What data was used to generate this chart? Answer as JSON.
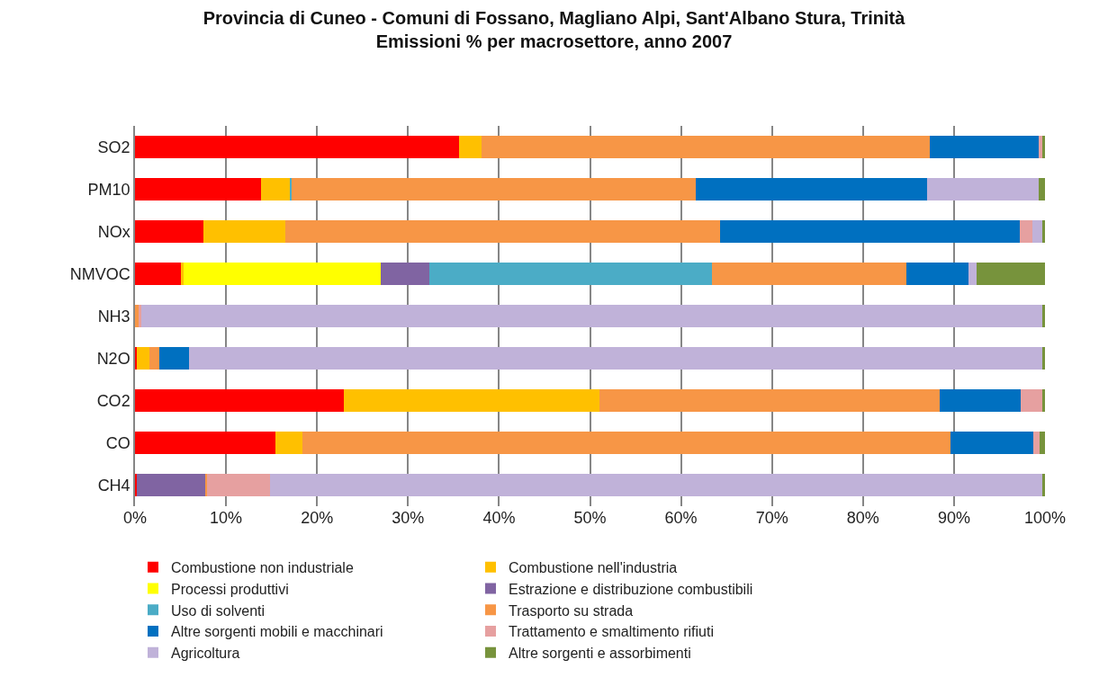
{
  "chart_data": {
    "type": "bar",
    "title": "Provincia di Cuneo - Comuni di Fossano, Magliano Alpi, Sant'Albano Stura, Trinità\nEmissioni % per macrosettore, anno 2007",
    "orientation": "horizontal",
    "stacked": true,
    "categories": [
      "SO2",
      "PM10",
      "NOx",
      "NMVOC",
      "NH3",
      "N2O",
      "CO2",
      "CO",
      "CH4"
    ],
    "series": [
      {
        "name": "Combustione non industriale",
        "color": "#ff0000",
        "values": [
          35.6,
          13.8,
          7.5,
          5.0,
          0,
          0.2,
          22.9,
          15.4,
          0.2
        ]
      },
      {
        "name": "Combustione nell'industria",
        "color": "#ffc000",
        "values": [
          2.5,
          3.2,
          9.0,
          0.3,
          0,
          1.4,
          28.1,
          3.0,
          0
        ]
      },
      {
        "name": "Processi produttivi",
        "color": "#ffff00",
        "values": [
          0,
          0,
          0,
          21.7,
          0,
          0,
          0,
          0,
          0
        ]
      },
      {
        "name": "Estrazione e distribuzione combustibili",
        "color": "#8064a2",
        "values": [
          0,
          0,
          0,
          5.3,
          0,
          0,
          0,
          0,
          7.5
        ]
      },
      {
        "name": "Uso di solventi",
        "color": "#4bacc6",
        "values": [
          0,
          0.2,
          0,
          31.1,
          0,
          0,
          0,
          0,
          0
        ]
      },
      {
        "name": "Trasporto su strada",
        "color": "#f79646",
        "values": [
          49.2,
          44.4,
          47.8,
          21.4,
          0.4,
          1.1,
          37.4,
          71.2,
          0.2
        ]
      },
      {
        "name": "Altre sorgenti mobili e macchinari",
        "color": "#0070c0",
        "values": [
          12.0,
          25.4,
          32.9,
          6.8,
          0,
          3.2,
          8.9,
          9.1,
          0
        ]
      },
      {
        "name": "Trattamento e smaltimento rifiuti",
        "color": "#e6a0a0",
        "values": [
          0.4,
          0,
          1.4,
          0,
          0.3,
          0,
          2.4,
          0.7,
          6.9
        ]
      },
      {
        "name": "Agricoltura",
        "color": "#c0b2d9",
        "values": [
          0,
          12.3,
          1.1,
          0.9,
          99.0,
          93.8,
          0,
          0,
          84.9
        ]
      },
      {
        "name": "Altre sorgenti e assorbimenti",
        "color": "#77933c",
        "values": [
          0.3,
          0.7,
          0.3,
          7.5,
          0.3,
          0.3,
          0.3,
          0.6,
          0.3
        ]
      }
    ],
    "xlim": [
      0,
      100
    ],
    "xticks": [
      {
        "value": 0,
        "label": "0%"
      },
      {
        "value": 10,
        "label": "10%"
      },
      {
        "value": 20,
        "label": "20%"
      },
      {
        "value": 30,
        "label": "30%"
      },
      {
        "value": 40,
        "label": "40%"
      },
      {
        "value": 50,
        "label": "50%"
      },
      {
        "value": 60,
        "label": "60%"
      },
      {
        "value": 70,
        "label": "70%"
      },
      {
        "value": 80,
        "label": "80%"
      },
      {
        "value": 90,
        "label": "90%"
      },
      {
        "value": 100,
        "label": "100%"
      }
    ],
    "grid": "x",
    "legend": "bottom"
  }
}
